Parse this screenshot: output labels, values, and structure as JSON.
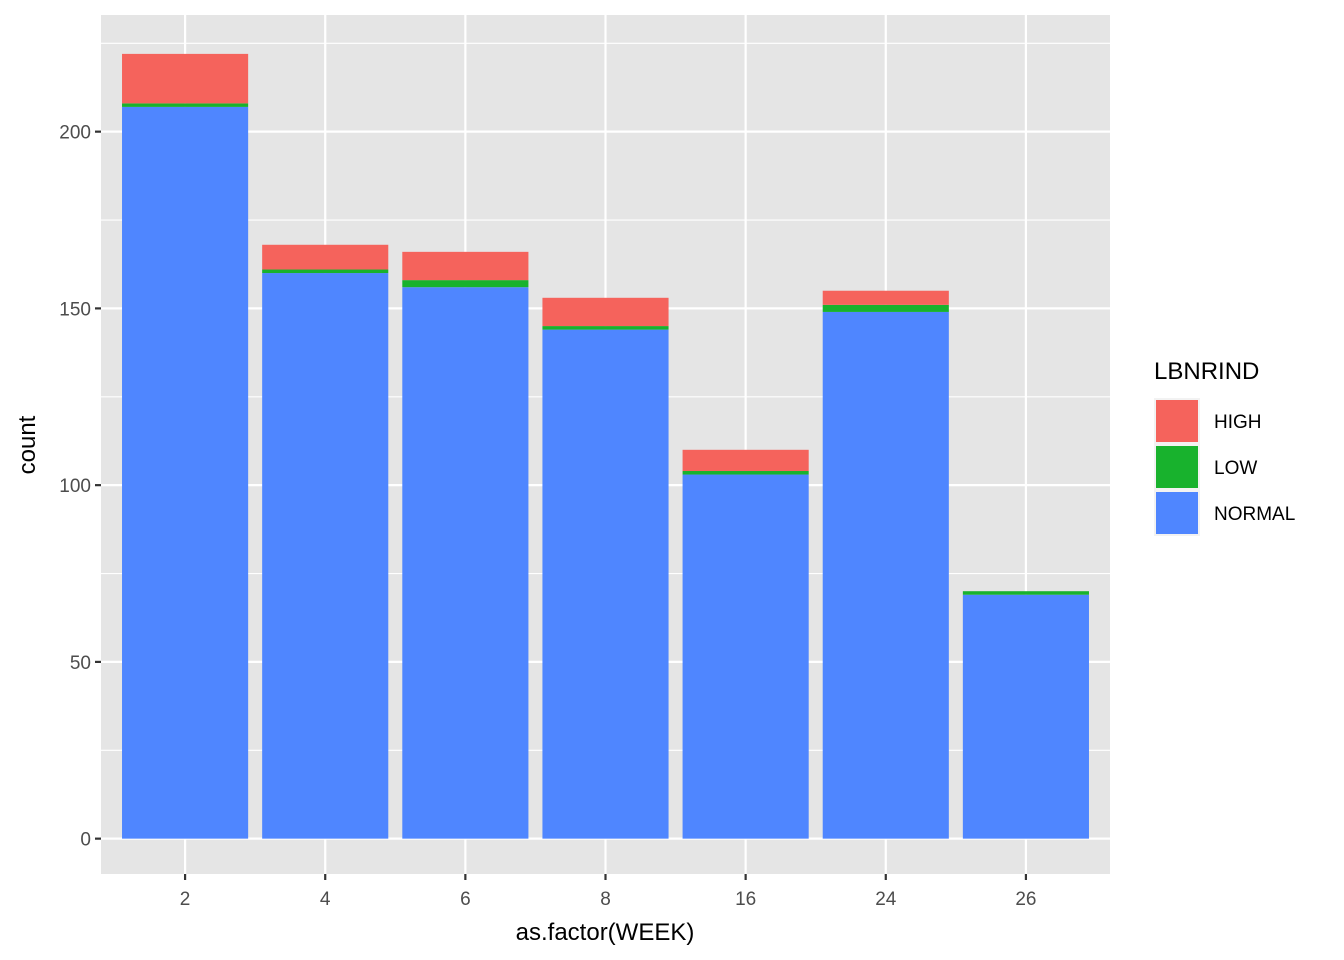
{
  "chart_data": {
    "type": "bar",
    "stacked": true,
    "categories": [
      "2",
      "4",
      "6",
      "8",
      "16",
      "24",
      "26"
    ],
    "series": [
      {
        "name": "NORMAL",
        "color": "#4f86ff",
        "values": [
          207,
          160,
          156,
          144,
          103,
          149,
          69
        ]
      },
      {
        "name": "LOW",
        "color": "#18b22d",
        "values": [
          1,
          1,
          2,
          1,
          1,
          2,
          1
        ]
      },
      {
        "name": "HIGH",
        "color": "#f5635c",
        "values": [
          14,
          7,
          8,
          8,
          6,
          4,
          0
        ]
      }
    ],
    "xlabel": "as.factor(WEEK)",
    "ylabel": "count",
    "yticks": [
      0,
      50,
      100,
      150,
      200
    ],
    "ylim": [
      -10,
      233
    ],
    "grid": true,
    "legend": {
      "title": "LBNRIND",
      "position": "right",
      "items": [
        "HIGH",
        "LOW",
        "NORMAL"
      ]
    }
  },
  "colors": {
    "panel_background": "#e5e5e5",
    "grid": "#ffffff",
    "tick_text": "#4d4d4d",
    "tick_mark": "#333333"
  }
}
